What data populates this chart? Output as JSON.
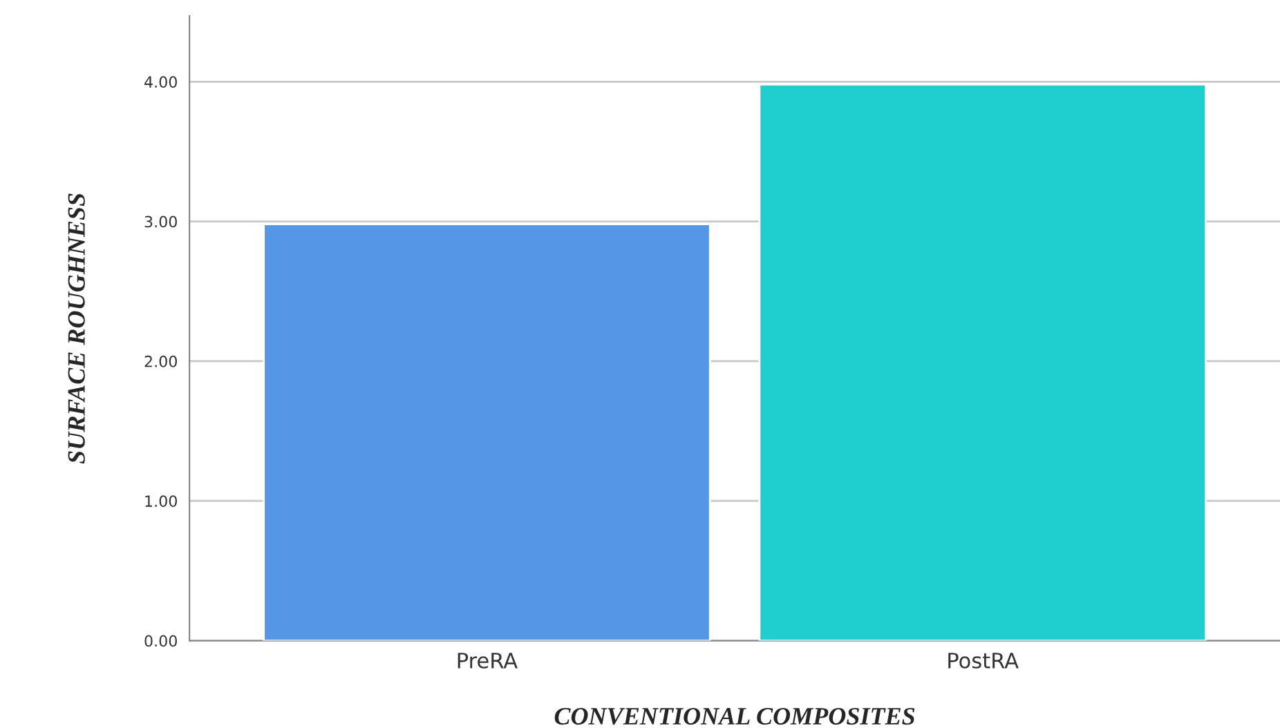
{
  "chart_data": {
    "type": "bar",
    "xlabel": "CONVENTIONAL COMPOSITES",
    "ylabel": "SURFACE ROUGHNESS",
    "categories": [
      "PreRA",
      "PostRA"
    ],
    "values": [
      2.98,
      3.98
    ],
    "colors": [
      "#5596e6",
      "#1fcece"
    ],
    "ylim": [
      0,
      4.47
    ],
    "yticks": [
      {
        "value": 0,
        "label": "0.00"
      },
      {
        "value": 1,
        "label": "1.00"
      },
      {
        "value": 2,
        "label": "2.00"
      },
      {
        "value": 3,
        "label": "3.00"
      },
      {
        "value": 4,
        "label": "4.00"
      }
    ],
    "grid": "y"
  }
}
